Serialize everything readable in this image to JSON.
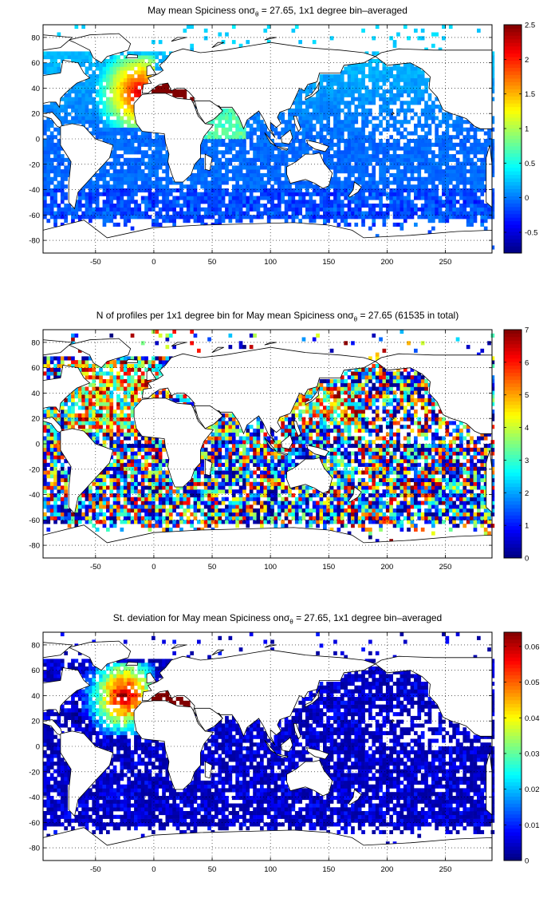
{
  "panels": [
    {
      "id": "mean",
      "title_main": "May mean Spiciness on",
      "title_sigma": "σ",
      "title_sub": "θ",
      "title_tail": " = 27.65, 1x1 degree bin–averaged",
      "colorbar": {
        "min": -0.8,
        "max": 2.5,
        "ticks": [
          -0.5,
          0,
          0.5,
          1,
          1.5,
          2,
          2.5
        ],
        "tick_labels": [
          "-0.5",
          "0",
          "0.5",
          "1",
          "1.5",
          "2",
          "2.5"
        ]
      },
      "field": "mean"
    },
    {
      "id": "count",
      "title_main": "N of profiles per 1x1 degree bin for May mean Spiciness on",
      "title_sigma": "σ",
      "title_sub": "θ",
      "title_tail": " = 27.65 (61535 in total)",
      "colorbar": {
        "min": 0,
        "max": 7,
        "ticks": [
          0,
          1,
          2,
          3,
          4,
          5,
          6,
          7
        ],
        "tick_labels": [
          "0",
          "1",
          "2",
          "3",
          "4",
          "5",
          "6",
          "7"
        ]
      },
      "field": "count"
    },
    {
      "id": "std",
      "title_main": "St. deviation for May mean Spiciness on",
      "title_sigma": "σ",
      "title_sub": "θ",
      "title_tail": " = 27.65, 1x1 degree bin–averaged",
      "colorbar": {
        "min": 0,
        "max": 0.064,
        "ticks": [
          0,
          0.01,
          0.02,
          0.03,
          0.04,
          0.05,
          0.06
        ],
        "tick_labels": [
          "0",
          "0.01",
          "0.02",
          "0.03",
          "0.04",
          "0.05",
          "0.06"
        ]
      },
      "field": "std"
    }
  ],
  "axes": {
    "x_range": [
      -95,
      290
    ],
    "y_range": [
      -90,
      90
    ],
    "x_ticks": [
      -50,
      0,
      50,
      100,
      150,
      200,
      250
    ],
    "x_tick_labels": [
      "-50",
      "0",
      "50",
      "100",
      "150",
      "200",
      "250"
    ],
    "y_ticks": [
      -80,
      -60,
      -40,
      -20,
      0,
      20,
      40,
      60,
      80
    ],
    "y_tick_labels": [
      "-80",
      "-60",
      "-40",
      "-20",
      "0",
      "20",
      "40",
      "60",
      "80"
    ],
    "grid": true,
    "grid_style": "dotted"
  },
  "colormap": "jet",
  "colors": {
    "land": "#ffffff",
    "coast": "#000000",
    "nodata": "#ffffff"
  }
}
